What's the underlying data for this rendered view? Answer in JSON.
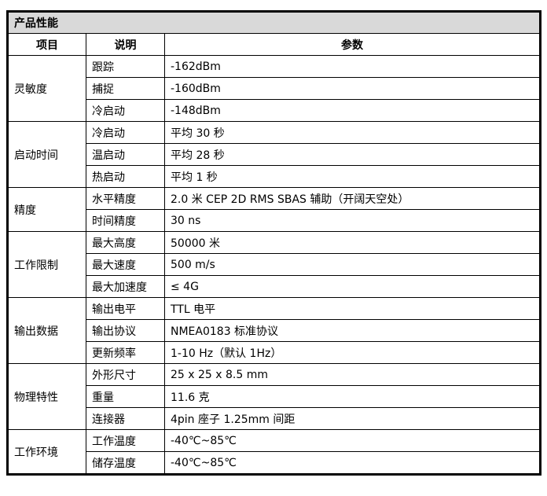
{
  "title": "产品性能",
  "headers": [
    "项目",
    "说明",
    "参数"
  ],
  "groups": [
    {
      "name": "灵敏度",
      "rows": [
        [
          "跟踪",
          "-162dBm"
        ],
        [
          "捕捉",
          "-160dBm"
        ],
        [
          "冷启动",
          "-148dBm"
        ]
      ]
    },
    {
      "name": "启动时间",
      "rows": [
        [
          "冷启动",
          "平均 30 秒"
        ],
        [
          "温启动",
          "平均 28 秒"
        ],
        [
          "热启动",
          "平均 1 秒"
        ]
      ]
    },
    {
      "name": "精度",
      "rows": [
        [
          "水平精度",
          "2.0 米 CEP 2D RMS SBAS 辅助（开阔天空处）"
        ],
        [
          "时间精度",
          "30 ns"
        ]
      ]
    },
    {
      "name": "工作限制",
      "rows": [
        [
          "最大高度",
          "50000 米"
        ],
        [
          "最大速度",
          "500 m/s"
        ],
        [
          "最大加速度",
          "≤  4G"
        ]
      ]
    },
    {
      "name": "输出数据",
      "rows": [
        [
          "输出电平",
          "TTL 电平"
        ],
        [
          "输出协议",
          "NMEA0183 标准协议"
        ],
        [
          "更新频率",
          "1-10 Hz（默认 1Hz）"
        ]
      ]
    },
    {
      "name": "物理特性",
      "rows": [
        [
          "外形尺寸",
          "25 x 25 x 8.5 mm"
        ],
        [
          "重量",
          "11.6 克"
        ],
        [
          "连接器",
          "4pin 座子 1.25mm 间距"
        ]
      ]
    },
    {
      "name": "工作环境",
      "rows": [
        [
          "工作温度",
          "-40℃~85℃"
        ],
        [
          "储存温度",
          "-40℃~85℃"
        ]
      ]
    }
  ]
}
